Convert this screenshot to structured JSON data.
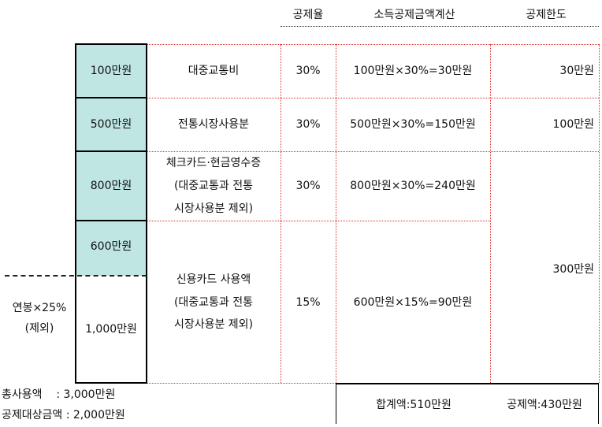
{
  "header": {
    "rate": "공제율",
    "calc": "소득공제금액계산",
    "limit": "공제한도"
  },
  "rows": [
    {
      "amount": "100만원",
      "category_lines": [
        "대중교통비"
      ],
      "rate": "30%",
      "calc": "100만원×30%=30만원",
      "limit": "30만원"
    },
    {
      "amount": "500만원",
      "category_lines": [
        "전통시장사용분"
      ],
      "rate": "30%",
      "calc": "500만원×30%=150만원",
      "limit": "100만원"
    },
    {
      "amount": "800만원",
      "category_lines": [
        "체크카드·현금영수증",
        "(대중교통과 전통",
        "시장사용분 제외)"
      ],
      "rate": "30%",
      "calc": "800만원×30%=240만원"
    },
    {
      "amount_top": "600만원",
      "amount_bottom": "1,000만원",
      "category_lines": [
        "신용카드 사용액",
        "(대중교통과 전통",
        "시장사용분 제외)"
      ],
      "rate": "15%",
      "calc": "600만원×15%=90만원"
    }
  ],
  "shared_limit": "300만원",
  "left_label": [
    "연봉×25%",
    "(제외)"
  ],
  "footer": {
    "total_usage": "총사용액    : 3,000만원",
    "eligible_amount": "공제대상금액 : 2,000만원",
    "sum_label": "합계액:510만원",
    "deduction_label": "공제액:430만원"
  }
}
